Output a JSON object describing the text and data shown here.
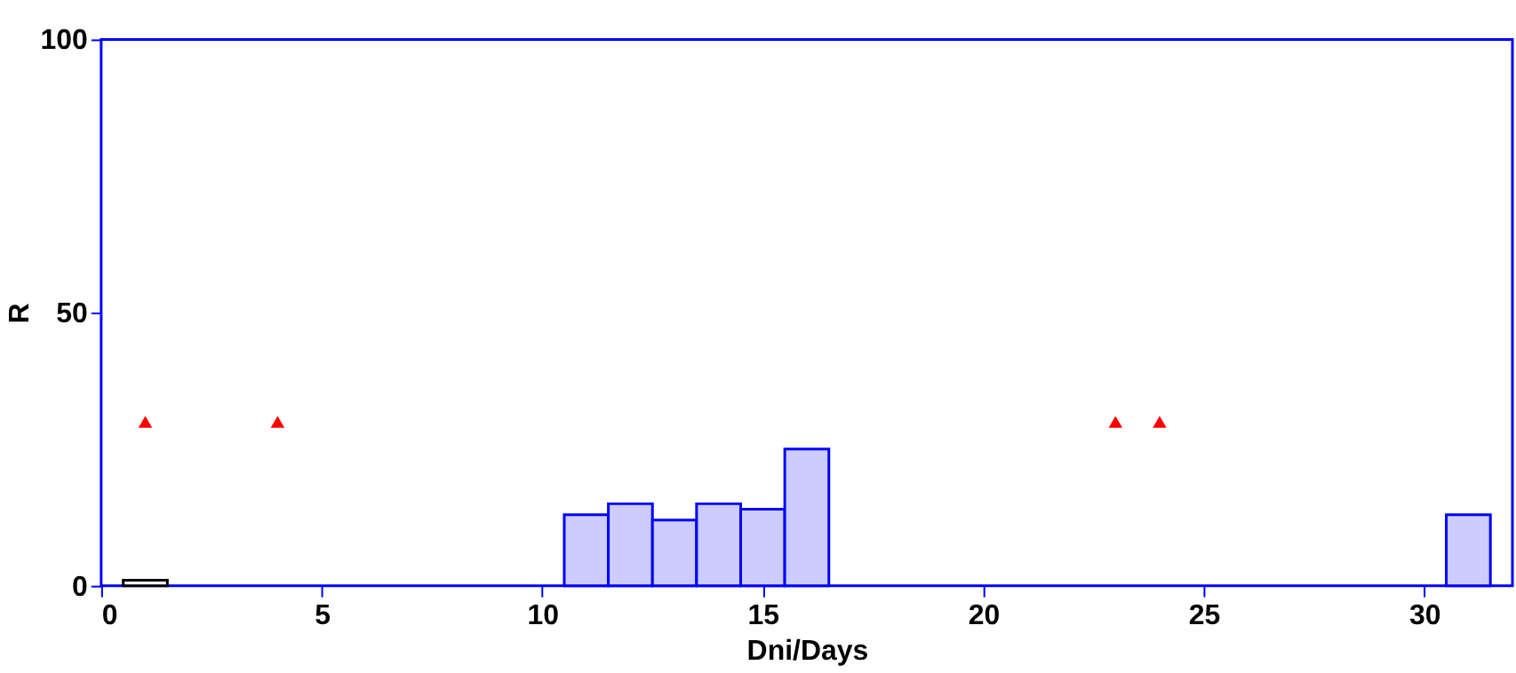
{
  "chart_data": {
    "type": "bar",
    "xlabel": "Dni/Days",
    "ylabel": "R",
    "xlim": [
      0,
      32
    ],
    "xticks": [
      0,
      5,
      10,
      15,
      20,
      25,
      30
    ],
    "ylim": [
      0,
      100
    ],
    "yticks": [
      0,
      50,
      100
    ],
    "grid": false,
    "series": [
      {
        "x": [
          1,
          11,
          12,
          13,
          14,
          15,
          16,
          31
        ],
        "values": [
          1,
          13,
          15,
          12,
          15,
          14,
          25,
          13
        ],
        "colors": [
          "#ffffff",
          "#ccccff",
          "#ccccff",
          "#ccccff",
          "#ccccff",
          "#ccccff",
          "#ccccff",
          "#ccccff"
        ]
      },
      {
        "type": "scatter",
        "marker": "triangle",
        "color": "#ff0000",
        "x": [
          1,
          4,
          23,
          24
        ],
        "values": [
          30,
          30,
          30,
          30
        ]
      }
    ]
  }
}
